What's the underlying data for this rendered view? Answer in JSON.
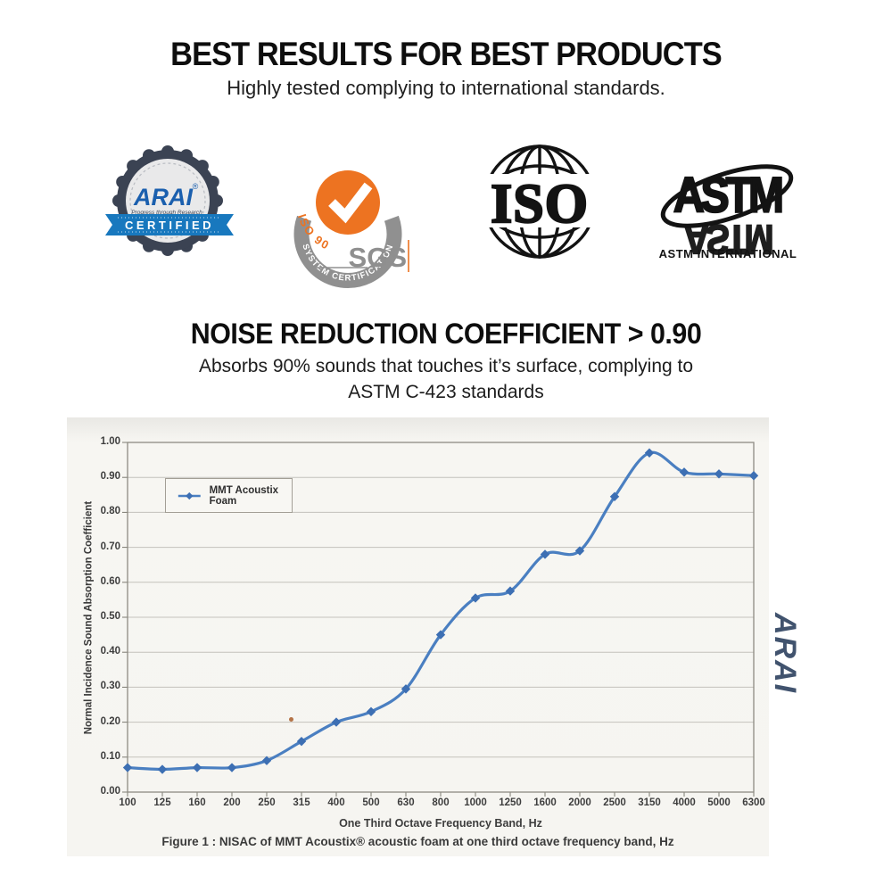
{
  "header": {
    "title": "BEST RESULTS FOR BEST PRODUCTS",
    "subtitle": "Highly tested complying to international standards."
  },
  "logos": {
    "arai": {
      "brand": "ARAI",
      "registered_mark": "®",
      "tagline": "Progress through Research",
      "ribbon_label": "CERTIFIED",
      "badge_color": "#3b4353",
      "ribbon_color": "#1878be",
      "brand_color": "#1a5fae"
    },
    "sgs": {
      "arch_label": "SYSTEM CERTIFICATION",
      "standard_label": "ISO 9001",
      "brand": "SGS",
      "accent_color": "#ed7321",
      "gray_color": "#8f8f8f"
    },
    "iso": {
      "brand": "ISO"
    },
    "astm": {
      "brand": "ASTM",
      "caption": "ASTM INTERNATIONAL"
    }
  },
  "nrc": {
    "title": "NOISE REDUCTION COEFFICIENT > 0.90",
    "subtitle_line1": "Absorbs 90% sounds that touches it’s surface, complying to",
    "subtitle_line2": "ASTM C-423 standards"
  },
  "chart_data": {
    "type": "line",
    "categories": [
      "100",
      "125",
      "160",
      "200",
      "250",
      "315",
      "400",
      "500",
      "630",
      "800",
      "1000",
      "1250",
      "1600",
      "2000",
      "2500",
      "3150",
      "4000",
      "5000",
      "6300"
    ],
    "series": [
      {
        "name": "MMT Acoustix Foam",
        "values": [
          0.07,
          0.065,
          0.07,
          0.07,
          0.09,
          0.145,
          0.2,
          0.23,
          0.295,
          0.45,
          0.555,
          0.575,
          0.68,
          0.69,
          0.845,
          0.97,
          0.915,
          0.91,
          0.905
        ]
      }
    ],
    "xlabel": "One Third Octave Frequency Band, Hz",
    "ylabel": "Normal Incidence Sound Absorption Coefficient",
    "ylim": [
      0.0,
      1.0
    ],
    "ytick_step": 0.1,
    "grid": true,
    "legend_position": "top-left-inside",
    "line_color": "#4a7fc1",
    "caption": "Figure 1 : NISAC of MMT Acoustix® acoustic foam at one third octave frequency band, Hz"
  },
  "watermark": "ARAI"
}
